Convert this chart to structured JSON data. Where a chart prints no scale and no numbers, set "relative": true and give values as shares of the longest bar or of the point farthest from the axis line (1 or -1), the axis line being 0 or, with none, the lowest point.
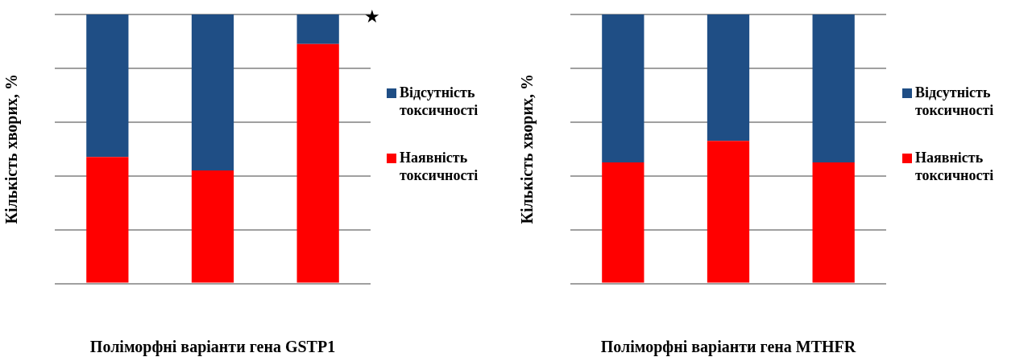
{
  "chart_data": [
    {
      "type": "bar",
      "stacked": true,
      "relative": true,
      "xlabel": "Поліморфні варіанти гена GSTP1",
      "ylabel": "Кількість хворих, %",
      "categories": [
        null,
        null,
        null
      ],
      "grid": "y",
      "legend": "right",
      "annotations": [
        "★"
      ],
      "series": [
        {
          "name": "Наявність токсичності",
          "color": "#ff0000",
          "values": [
            0.47,
            0.42,
            0.89
          ]
        },
        {
          "name": "Відсутність токсичності",
          "color": "#1f4e85",
          "values": [
            0.53,
            0.58,
            0.11
          ]
        }
      ]
    },
    {
      "type": "bar",
      "stacked": true,
      "relative": true,
      "xlabel": "Поліморфні варіанти гена MTHFR",
      "ylabel": "Кількість хворих, %",
      "categories": [
        null,
        null,
        null
      ],
      "grid": "y",
      "legend": "right",
      "series": [
        {
          "name": "Наявність токсичності",
          "color": "#ff0000",
          "values": [
            0.45,
            0.53,
            0.45
          ]
        },
        {
          "name": "Відсутність токсичності",
          "color": "#1f4e85",
          "values": [
            0.55,
            0.47,
            0.55
          ]
        }
      ]
    }
  ]
}
